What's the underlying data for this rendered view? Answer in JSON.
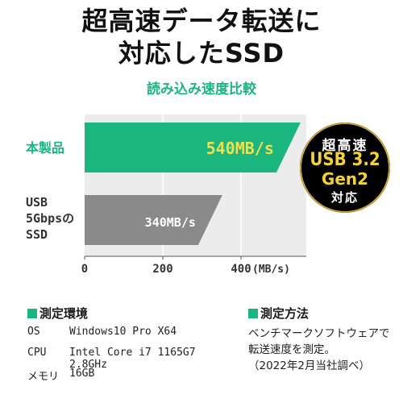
{
  "headline": {
    "line1": "超高速データ転送に",
    "line2": "対応したSSD"
  },
  "chart_data": {
    "type": "bar",
    "orientation": "horizontal",
    "title": "読み込み速度比較",
    "categories": [
      "本製品",
      "USB\n5Gbpsの\nSSD"
    ],
    "values": [
      540,
      340
    ],
    "value_labels": [
      "540MB/s",
      "340MB/s"
    ],
    "xlim": [
      0,
      560
    ],
    "x_ticks": [
      0,
      200,
      400
    ],
    "x_unit": "(MB/s)",
    "colors": {
      "product": "#1bb57f",
      "compare": "#8a8a8a",
      "background": "#ececec",
      "product_label": "#f0e04a",
      "compare_label": "#ffffff",
      "product_category": "#1bb57f",
      "compare_category": "#333333"
    }
  },
  "badge": {
    "line1": "超高速",
    "line2": "USB 3.2",
    "line3": "Gen2",
    "line4": "対応"
  },
  "environment": {
    "title": "測定環境",
    "rows": [
      {
        "key": "OS",
        "value": "Windows10 Pro X64"
      },
      {
        "key": "CPU",
        "value": "Intel Core i7 1165G7 2.8GHz"
      },
      {
        "key": "メモリ",
        "value": "16GB"
      }
    ]
  },
  "method": {
    "title": "測定方法",
    "lines": [
      "ベンチマークソフトウェアで",
      "転送速度を測定。",
      "（2022年2月当社調べ）"
    ]
  }
}
